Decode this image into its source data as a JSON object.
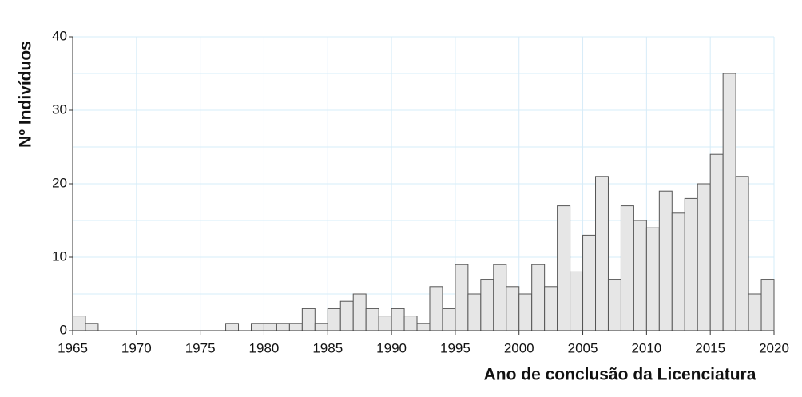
{
  "chart_data": {
    "type": "histogram",
    "xlabel": "Ano de conclusão da Licenciatura",
    "ylabel": "Nº Indivíduos",
    "bins": [
      1965,
      1966,
      1967,
      1968,
      1969,
      1970,
      1971,
      1972,
      1973,
      1974,
      1975,
      1976,
      1977,
      1978,
      1979,
      1980,
      1981,
      1982,
      1983,
      1984,
      1985,
      1986,
      1987,
      1988,
      1989,
      1990,
      1991,
      1992,
      1993,
      1994,
      1995,
      1996,
      1997,
      1998,
      1999,
      2000,
      2001,
      2002,
      2003,
      2004,
      2005,
      2006,
      2007,
      2008,
      2009,
      2010,
      2011,
      2012,
      2013,
      2014,
      2015,
      2016,
      2017,
      2018,
      2019,
      2020
    ],
    "counts": [
      2,
      1,
      0,
      0,
      0,
      0,
      0,
      0,
      0,
      0,
      0,
      0,
      1,
      0,
      1,
      1,
      1,
      1,
      3,
      1,
      3,
      4,
      5,
      3,
      2,
      3,
      2,
      1,
      6,
      3,
      9,
      5,
      7,
      9,
      6,
      5,
      9,
      6,
      17,
      8,
      13,
      21,
      7,
      17,
      15,
      14,
      19,
      16,
      18,
      20,
      24,
      35,
      21,
      5,
      7
    ],
    "color": "#e6e6e6",
    "xlim": [
      1965,
      2020
    ],
    "xticks": [
      1965,
      1970,
      1975,
      1980,
      1985,
      1990,
      1995,
      2000,
      2005,
      2010,
      2015,
      2020
    ],
    "ylim": [
      0,
      40
    ],
    "yticks": [
      0,
      10,
      20,
      30,
      40
    ],
    "grid": true
  }
}
